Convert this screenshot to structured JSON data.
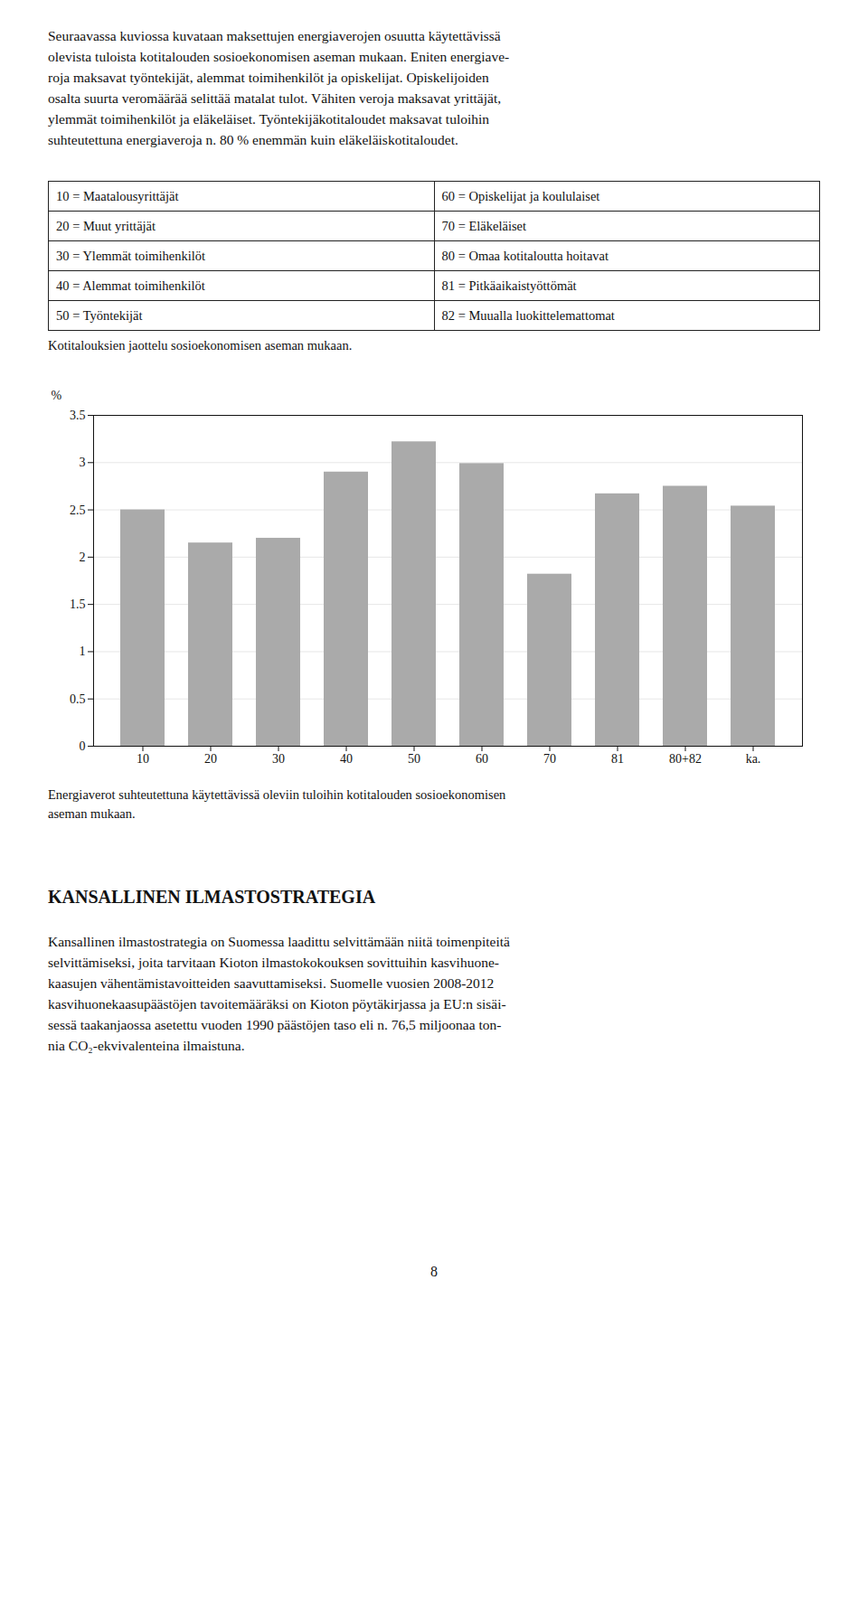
{
  "main_text": [
    "Seuraavassa kuviossa kuvataan maksettujen energiaverojen osuutta käytettävissä",
    "olevista tuloista kotitalouden sosioekonomisen aseman mukaan. Eniten energiave-",
    "roja maksavat työntekijät, alemmat toimihenkilöt ja opiskelijat. Opiskelijoiden",
    "osalta suurta veromäärää selittää matalat tulot. Vähiten veroja maksavat yrittäjät,",
    "ylemmät toimihenkilöt ja eläkeläiset. Työntekijäkotitaloudet maksavat tuloihin",
    "suhteutettuna energiaveroja n. 80 % enemmän kuin eläkeläiskotitaloudet."
  ],
  "table": [
    [
      "10 = Maatalousyrittäjät",
      "60 = Opiskelijat ja koululaiset"
    ],
    [
      "20 = Muut yrittäjät",
      "70 = Eläkeläiset"
    ],
    [
      "30 = Ylemmät toimihenkilöt",
      "80 = Omaa kotitaloutta hoitavat"
    ],
    [
      "40 = Alemmat toimihenkilöt",
      "81 = Pitkäaikaistyöttömät"
    ],
    [
      "50 = Työntekijät",
      "82 = Muualla luokittelemattomat"
    ]
  ],
  "table_caption": "Kotitalouksien jaottelu sosioekonomisen aseman mukaan.",
  "chart_data": {
    "type": "bar",
    "categories": [
      "10",
      "20",
      "30",
      "40",
      "50",
      "60",
      "70",
      "81",
      "80+82",
      "ka."
    ],
    "values": [
      2.5,
      2.15,
      2.2,
      2.9,
      3.22,
      2.99,
      1.82,
      2.67,
      2.75,
      2.54
    ],
    "color": "#aaaaaa",
    "ylabel": "%",
    "ylim": [
      0,
      3.5
    ],
    "yticks": [
      0,
      0.5,
      1,
      1.5,
      2,
      2.5,
      3,
      3.5
    ],
    "grid": true,
    "caption": [
      "Energiaverot suhteutettuna käytettävissä oleviin tuloihin kotitalouden sosioekonomisen",
      "aseman mukaan."
    ]
  },
  "section_title": "KANSALLINEN ILMASTOSTRATEGIA",
  "section_text": [
    "Kansallinen ilmastostrategia on Suomessa laadittu selvittämään niitä toimenpiteitä",
    "selvittämiseksi, joita tarvitaan Kioton ilmastokokouksen sovittuihin kasvihuone-",
    "kaasujen vähentämistavoitteiden saavuttamiseksi. Suomelle vuosien 2008-2012",
    "kasvihuonekaasupäästöjen tavoitemääräksi on Kioton pöytäkirjassa ja EU:n sisäi-",
    "sessä taakanjaossa asetettu vuoden 1990 päästöjen taso eli n. 76,5 miljoonaa ton-",
    "nia CO₂-ekvivalenteina ilmaistuna."
  ],
  "page_number": "8"
}
